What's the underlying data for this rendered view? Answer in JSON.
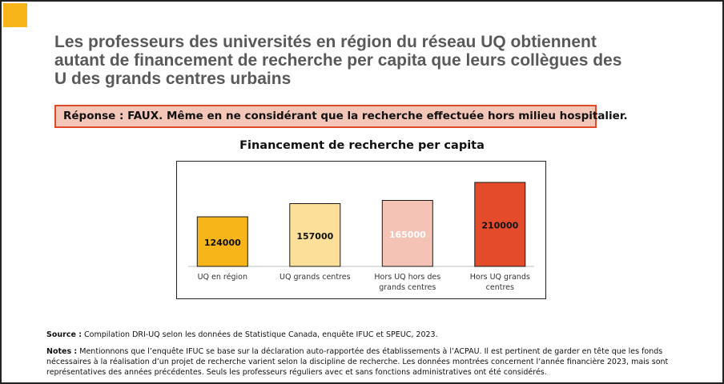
{
  "slide": {
    "headline_lines": [
      "Les professeurs des universités en région du réseau UQ obtiennent",
      "autant de financement de recherche per capita que leurs collègues des",
      "U des grands centres urbains"
    ],
    "answer": "Réponse : FAUX. Même en ne considérant que la recherche effectuée hors milieu hospitalier.",
    "accent_color": "#F7B519"
  },
  "chart_data": {
    "type": "bar",
    "title": "Financement de recherche per capita",
    "categories": [
      [
        "UQ en région"
      ],
      [
        "UQ grands centres"
      ],
      [
        "Hors UQ hors des",
        "grands centres"
      ],
      [
        "Hors UQ grands",
        "centres"
      ]
    ],
    "values": [
      124000,
      157000,
      165000,
      210000
    ],
    "bar_colors": [
      "#F7B519",
      "#FCDF98",
      "#F4C3B5",
      "#E34B2A"
    ],
    "value_label_colors": [
      "#111111",
      "#111111",
      "#FFFFFF",
      "#111111"
    ],
    "ylim": [
      0,
      240000
    ],
    "grid": false,
    "legend": "none"
  },
  "footer": {
    "source_label": "Source :",
    "source_text": " Compilation DRI-UQ selon les données de Statistique Canada, enquête IFUC et SPEUC, 2023.",
    "notes_label": "Notes :",
    "notes_lines": [
      " Mentionnons que l’enquête IFUC se base sur la déclaration auto-rapportée des établissements à l’ACPAU. Il est pertinent de garder en tête que les fonds",
      "nécessaires à la réalisation d’un projet de recherche varient selon la discipline de recherche. Les données montrées concernent l’année financière 2023, mais sont",
      "représentatives des années précédentes. Seuls les professeurs réguliers avec et sans fonctions administratives ont été considérés."
    ]
  }
}
